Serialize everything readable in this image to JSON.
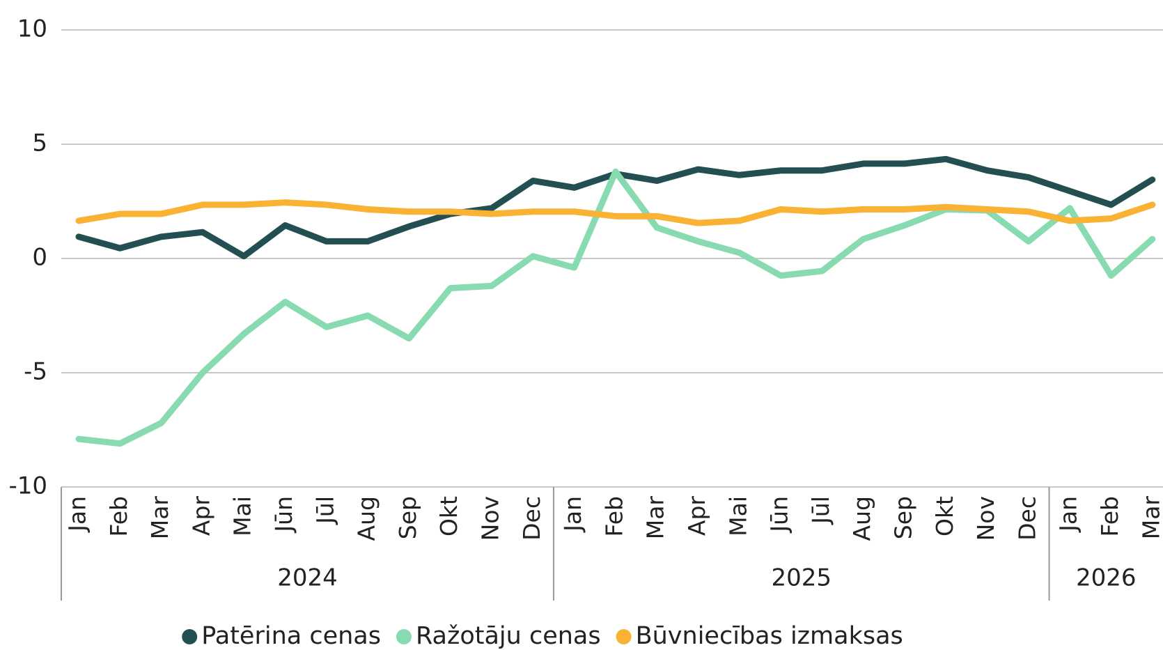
{
  "chart_data": {
    "type": "line",
    "categories": [
      "Jan",
      "Feb",
      "Mar",
      "Apr",
      "Mai",
      "Jūn",
      "Jūl",
      "Aug",
      "Sep",
      "Okt",
      "Nov",
      "Dec",
      "Jan",
      "Feb",
      "Mar",
      "Apr",
      "Mai",
      "Jūn",
      "Jūl",
      "Aug",
      "Sep",
      "Okt",
      "Nov",
      "Dec",
      "Jan",
      "Feb",
      "Mar"
    ],
    "groups": [
      {
        "name": "2024",
        "size": 12
      },
      {
        "name": "2025",
        "size": 12
      },
      {
        "name": "2026",
        "size": 3
      }
    ],
    "series": [
      {
        "name": "Patērina cenas",
        "color": "#234f52",
        "values": [
          0.95,
          0.45,
          0.95,
          1.15,
          0.1,
          1.45,
          0.75,
          0.75,
          1.4,
          1.95,
          2.2,
          3.4,
          3.1,
          3.7,
          3.4,
          3.9,
          3.65,
          3.85,
          3.85,
          4.15,
          4.15,
          4.35,
          3.85,
          3.55,
          2.95,
          2.35,
          3.45
        ]
      },
      {
        "name": "Ražotāju cenas",
        "color": "#88dbb0",
        "values": [
          -7.9,
          -8.1,
          -7.2,
          -5.0,
          -3.3,
          -1.9,
          -3.0,
          -2.5,
          -3.5,
          -1.3,
          -1.2,
          0.1,
          -0.4,
          3.8,
          1.35,
          0.75,
          0.25,
          -0.75,
          -0.55,
          0.85,
          1.45,
          2.15,
          2.1,
          0.75,
          2.2,
          -0.75,
          0.85
        ]
      },
      {
        "name": "Būvniecības izmaksas",
        "color": "#f9b233",
        "values": [
          1.65,
          1.95,
          1.95,
          2.35,
          2.35,
          2.45,
          2.35,
          2.15,
          2.05,
          2.05,
          1.95,
          2.05,
          2.05,
          1.85,
          1.85,
          1.55,
          1.65,
          2.15,
          2.05,
          2.15,
          2.15,
          2.25,
          2.15,
          2.05,
          1.65,
          1.75,
          2.35
        ]
      }
    ],
    "ylim": [
      -10,
      10
    ],
    "yticks": [
      -10,
      -5,
      0,
      5,
      10
    ],
    "grid": true,
    "legend": "bottom"
  }
}
